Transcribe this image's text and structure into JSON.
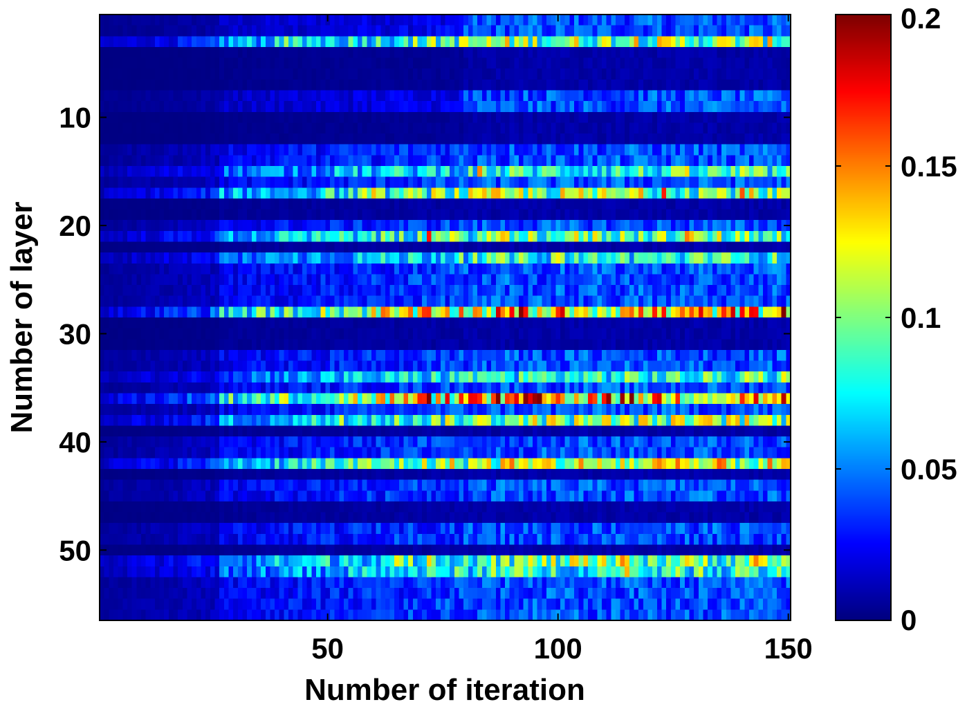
{
  "chart_data": {
    "type": "heatmap",
    "title": "",
    "xlabel": "Number of iteration",
    "ylabel": "Number of layer",
    "xlim": [
      1,
      150
    ],
    "ylim": [
      1,
      56
    ],
    "x_ticks": [
      50,
      100,
      150
    ],
    "y_ticks": [
      10,
      20,
      30,
      40,
      50
    ],
    "colormap": "jet",
    "color_range": [
      0,
      0.2
    ],
    "colorbar_ticks": [
      "0",
      "0.05",
      "0.1",
      "0.15",
      "0.2"
    ],
    "n_iterations": 150,
    "n_layers": 56,
    "grid": false,
    "legend": "none",
    "colorbar_position": "right",
    "onset_iteration": 27,
    "hot_row_means": [
      {
        "layer": 3,
        "mean_value": 0.1
      },
      {
        "layer": 15,
        "mean_value": 0.08
      },
      {
        "layer": 17,
        "mean_value": 0.1
      },
      {
        "layer": 21,
        "mean_value": 0.095
      },
      {
        "layer": 23,
        "mean_value": 0.08
      },
      {
        "layer": 28,
        "mean_value": 0.13
      },
      {
        "layer": 34,
        "mean_value": 0.08
      },
      {
        "layer": 36,
        "mean_value": 0.14
      },
      {
        "layer": 38,
        "mean_value": 0.1
      },
      {
        "layer": 42,
        "mean_value": 0.11
      },
      {
        "layer": 51,
        "mean_value": 0.095
      },
      {
        "layer": 52,
        "mean_value": 0.08
      }
    ],
    "cold_rows": [
      4,
      5,
      6,
      7,
      10,
      11,
      12,
      18,
      19,
      22,
      29,
      30,
      31,
      39,
      43,
      46,
      47,
      50
    ],
    "typical_value_after_onset": 0.04,
    "typical_value_before_onset": 0.012
  }
}
